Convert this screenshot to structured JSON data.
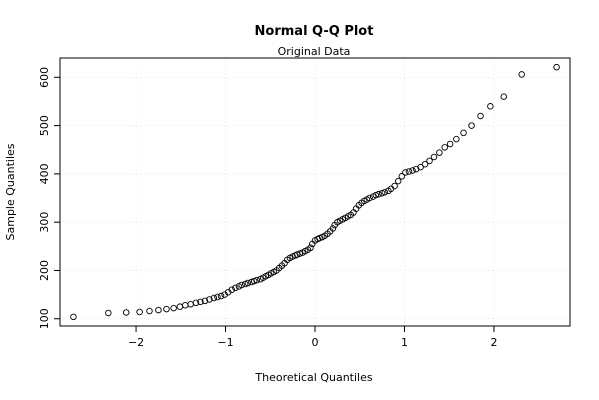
{
  "chart_data": {
    "type": "scatter",
    "title": "Normal Q-Q Plot",
    "subtitle": "Original Data",
    "xlabel": "Theoretical Quantiles",
    "ylabel": "Sample Quantiles",
    "xlim": [
      -2.85,
      2.85
    ],
    "ylim": [
      85,
      640
    ],
    "xticks": [
      -2,
      -1,
      0,
      1,
      2
    ],
    "yticks": [
      100,
      200,
      300,
      400,
      500,
      600
    ],
    "grid": true,
    "legend": "none",
    "points": [
      [
        -2.7,
        104
      ],
      [
        -2.31,
        112
      ],
      [
        -2.11,
        113
      ],
      [
        -1.96,
        114
      ],
      [
        -1.85,
        116
      ],
      [
        -1.75,
        118
      ],
      [
        -1.66,
        120
      ],
      [
        -1.58,
        122
      ],
      [
        -1.51,
        125
      ],
      [
        -1.45,
        128
      ],
      [
        -1.39,
        130
      ],
      [
        -1.33,
        133
      ],
      [
        -1.28,
        135
      ],
      [
        -1.23,
        137
      ],
      [
        -1.18,
        140
      ],
      [
        -1.13,
        143
      ],
      [
        -1.09,
        145
      ],
      [
        -1.05,
        147
      ],
      [
        -1.01,
        150
      ],
      [
        -0.97,
        155
      ],
      [
        -0.93,
        160
      ],
      [
        -0.89,
        164
      ],
      [
        -0.85,
        167
      ],
      [
        -0.82,
        170
      ],
      [
        -0.78,
        172
      ],
      [
        -0.75,
        174
      ],
      [
        -0.71,
        176
      ],
      [
        -0.68,
        178
      ],
      [
        -0.65,
        180
      ],
      [
        -0.61,
        182
      ],
      [
        -0.58,
        185
      ],
      [
        -0.55,
        188
      ],
      [
        -0.52,
        191
      ],
      [
        -0.49,
        194
      ],
      [
        -0.46,
        197
      ],
      [
        -0.43,
        200
      ],
      [
        -0.4,
        205
      ],
      [
        -0.37,
        210
      ],
      [
        -0.34,
        215
      ],
      [
        -0.31,
        222
      ],
      [
        -0.28,
        226
      ],
      [
        -0.25,
        229
      ],
      [
        -0.22,
        231
      ],
      [
        -0.2,
        233
      ],
      [
        -0.17,
        235
      ],
      [
        -0.14,
        237
      ],
      [
        -0.11,
        240
      ],
      [
        -0.08,
        243
      ],
      [
        -0.05,
        247
      ],
      [
        -0.03,
        255
      ],
      [
        0.0,
        262
      ],
      [
        0.03,
        265
      ],
      [
        0.05,
        267
      ],
      [
        0.08,
        269
      ],
      [
        0.11,
        272
      ],
      [
        0.14,
        276
      ],
      [
        0.17,
        281
      ],
      [
        0.2,
        287
      ],
      [
        0.22,
        294
      ],
      [
        0.25,
        300
      ],
      [
        0.28,
        303
      ],
      [
        0.31,
        306
      ],
      [
        0.34,
        309
      ],
      [
        0.37,
        312
      ],
      [
        0.4,
        315
      ],
      [
        0.43,
        320
      ],
      [
        0.46,
        328
      ],
      [
        0.49,
        335
      ],
      [
        0.52,
        340
      ],
      [
        0.55,
        344
      ],
      [
        0.58,
        347
      ],
      [
        0.61,
        350
      ],
      [
        0.65,
        353
      ],
      [
        0.68,
        356
      ],
      [
        0.71,
        358
      ],
      [
        0.75,
        360
      ],
      [
        0.78,
        362
      ],
      [
        0.82,
        365
      ],
      [
        0.85,
        369
      ],
      [
        0.89,
        375
      ],
      [
        0.93,
        385
      ],
      [
        0.97,
        395
      ],
      [
        1.01,
        403
      ],
      [
        1.05,
        405
      ],
      [
        1.09,
        407
      ],
      [
        1.13,
        410
      ],
      [
        1.18,
        414
      ],
      [
        1.23,
        420
      ],
      [
        1.28,
        427
      ],
      [
        1.33,
        435
      ],
      [
        1.39,
        444
      ],
      [
        1.45,
        455
      ],
      [
        1.51,
        462
      ],
      [
        1.58,
        472
      ],
      [
        1.66,
        485
      ],
      [
        1.75,
        500
      ],
      [
        1.85,
        520
      ],
      [
        1.96,
        540
      ],
      [
        2.11,
        560
      ],
      [
        2.31,
        606
      ],
      [
        2.7,
        621
      ]
    ]
  }
}
